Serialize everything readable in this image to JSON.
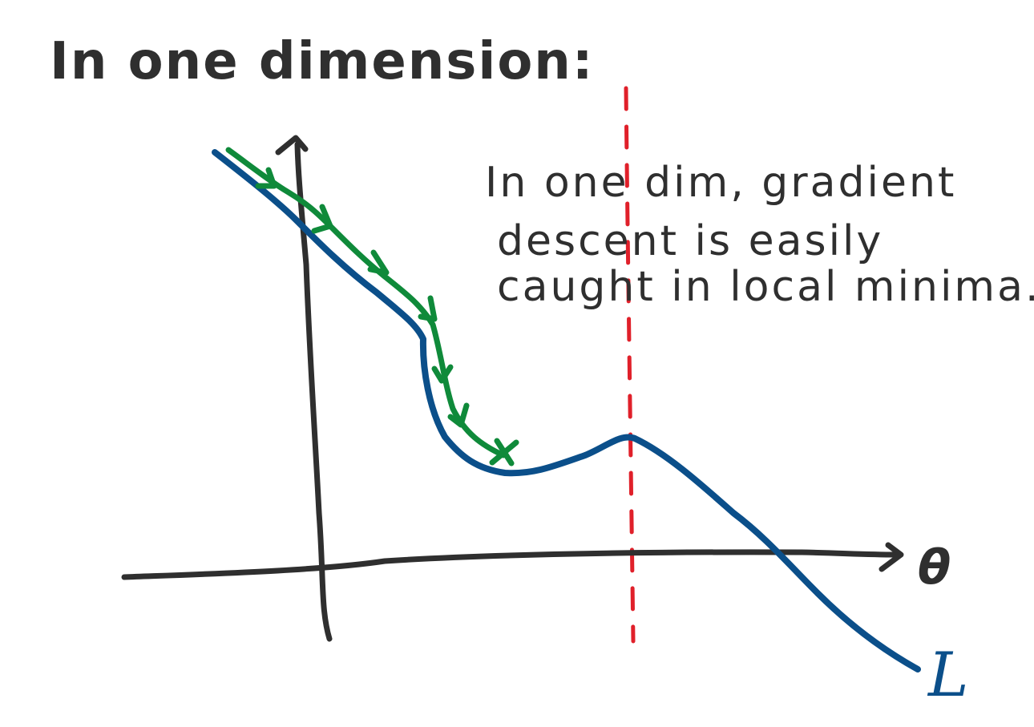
{
  "heading": "In one dimension:",
  "note": {
    "lines": [
      "In one dim, gradient",
      "descent is easily",
      "caught in local minima."
    ]
  },
  "axes": {
    "x_label": "θ",
    "curve_label": "L"
  },
  "colors": {
    "ink": "#2f2f2f",
    "loss_curve": "#0b4f8a",
    "descent_path": "#0f8a3a",
    "divider": "#e0202a"
  }
}
